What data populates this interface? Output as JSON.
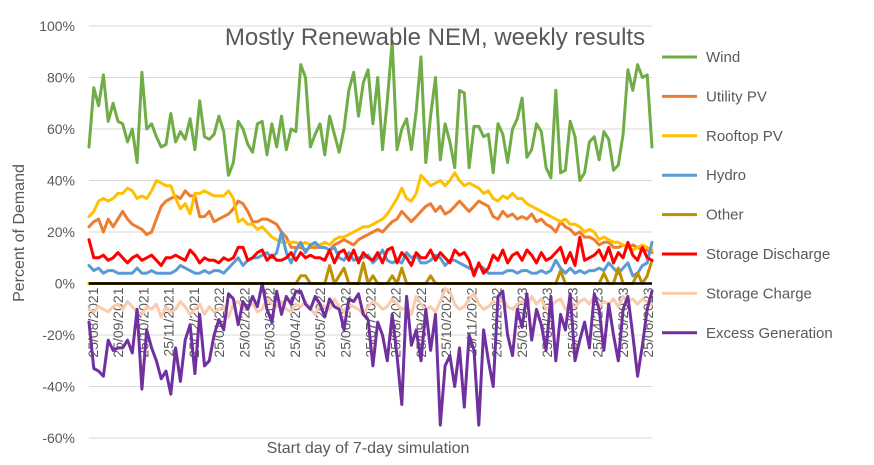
{
  "chart_data": {
    "type": "line",
    "title": "Mostly Renewable NEM, weekly results",
    "xlabel": "Start day of 7-day simulation",
    "ylabel": "Percent of Demand",
    "ylim": [
      -60,
      100
    ],
    "ytick_labels": [
      "100%",
      "80%",
      "60%",
      "40%",
      "20%",
      "0%",
      "-20%",
      "-40%",
      "-60%"
    ],
    "ytick_values": [
      100,
      80,
      60,
      40,
      20,
      0,
      -20,
      -40,
      -60
    ],
    "grid": true,
    "legend_position": "right",
    "x_tick_labels": [
      "25/08/2021",
      "25/09/2021",
      "25/10/2021",
      "25/11/2021",
      "25/12/2021",
      "25/01/2022",
      "25/02/2022",
      "25/03/2022",
      "25/04/2022",
      "25/05/2022",
      "25/06/2022",
      "25/07/2022",
      "25/08/2022",
      "25/09/2022",
      "25/10/2022",
      "25/11/2022",
      "25/12/2022",
      "25/01/2023",
      "25/02/2023",
      "25/03/2023",
      "25/04/2023",
      "25/05/2023",
      "25/06/2023"
    ],
    "series": [
      {
        "name": "Wind",
        "color": "#70AD47",
        "values": [
          53,
          76,
          69,
          81,
          63,
          70,
          63,
          62,
          55,
          60,
          47,
          82,
          60,
          62,
          57,
          53,
          54,
          66,
          55,
          59,
          56,
          64,
          52,
          71,
          57,
          56,
          58,
          65,
          59,
          42,
          47,
          63,
          60,
          54,
          51,
          62,
          63,
          50,
          62,
          53,
          65,
          52,
          60,
          59,
          85,
          80,
          53,
          58,
          62,
          50,
          65,
          58,
          51,
          60,
          75,
          82,
          65,
          78,
          83,
          62,
          80,
          52,
          71,
          94,
          52,
          60,
          64,
          52,
          67,
          88,
          47,
          65,
          80,
          48,
          62,
          55,
          45,
          75,
          74,
          45,
          61,
          61,
          57,
          58,
          43,
          62,
          58,
          47,
          60,
          64,
          72,
          49,
          52,
          62,
          59,
          45,
          41,
          75,
          43,
          44,
          63,
          57,
          40,
          43,
          55,
          57,
          48,
          59,
          56,
          44,
          46,
          58,
          83,
          75,
          85,
          80,
          81,
          53
        ]
      },
      {
        "name": "Utility PV",
        "color": "#ED7D31",
        "values": [
          22,
          24,
          25,
          20,
          25,
          22,
          25,
          28,
          25,
          23,
          22,
          21,
          19,
          20,
          25,
          30,
          32,
          33,
          34,
          33,
          36,
          34,
          34,
          26,
          26,
          28,
          24,
          25,
          26,
          27,
          29,
          32,
          31,
          28,
          24,
          24,
          25,
          25,
          24,
          23,
          20,
          18,
          14,
          14,
          14,
          13,
          14,
          14,
          14,
          14,
          13,
          15,
          16,
          17,
          16,
          15,
          17,
          18,
          19,
          20,
          21,
          20,
          22,
          24,
          25,
          28,
          26,
          24,
          26,
          28,
          30,
          31,
          28,
          30,
          27,
          28,
          30,
          32,
          30,
          28,
          30,
          32,
          31,
          30,
          26,
          25,
          28,
          26,
          27,
          25,
          26,
          25,
          27,
          24,
          25,
          23,
          22,
          20,
          24,
          22,
          21,
          19,
          20,
          18,
          18,
          17,
          15,
          16,
          16,
          14,
          14,
          15,
          14,
          15,
          14,
          13,
          13,
          12
        ]
      },
      {
        "name": "Rooftop PV",
        "color": "#FFC000",
        "values": [
          26,
          28,
          32,
          33,
          32,
          33,
          35,
          35,
          37,
          36,
          33,
          34,
          33,
          36,
          40,
          39,
          38,
          38,
          33,
          29,
          31,
          27,
          35,
          35,
          36,
          35,
          34,
          34,
          34,
          36,
          33,
          24,
          25,
          23,
          23,
          21,
          22,
          20,
          18,
          17,
          16,
          16,
          16,
          16,
          15,
          16,
          15,
          15,
          15,
          16,
          15,
          17,
          18,
          18,
          19,
          20,
          21,
          22,
          22,
          23,
          24,
          25,
          27,
          30,
          33,
          37,
          33,
          32,
          35,
          42,
          40,
          38,
          39,
          40,
          38,
          40,
          43,
          40,
          38,
          39,
          38,
          37,
          35,
          36,
          33,
          32,
          34,
          33,
          35,
          33,
          33,
          31,
          30,
          29,
          28,
          27,
          26,
          25,
          24,
          25,
          23,
          23,
          22,
          20,
          21,
          20,
          17,
          18,
          17,
          16,
          16,
          15,
          14,
          13,
          14,
          15,
          14,
          13
        ]
      },
      {
        "name": "Hydro",
        "color": "#5B9BD5",
        "values": [
          7,
          5,
          6,
          4,
          5,
          5,
          4,
          4,
          4,
          4,
          6,
          4,
          4,
          5,
          4,
          4,
          4,
          4,
          5,
          7,
          6,
          5,
          4,
          4,
          5,
          4,
          5,
          5,
          4,
          6,
          8,
          10,
          7,
          9,
          10,
          10,
          11,
          12,
          10,
          12,
          20,
          12,
          8,
          13,
          16,
          12,
          15,
          16,
          14,
          14,
          13,
          14,
          10,
          9,
          12,
          9,
          10,
          10,
          11,
          8,
          10,
          13,
          9,
          8,
          9,
          8,
          12,
          10,
          11,
          8,
          8,
          9,
          11,
          10,
          7,
          9,
          9,
          8,
          7,
          6,
          5,
          7,
          6,
          4,
          4,
          4,
          4,
          5,
          5,
          4,
          5,
          5,
          4,
          4,
          5,
          4,
          5,
          9,
          6,
          4,
          6,
          4,
          5,
          4,
          5,
          5,
          6,
          5,
          8,
          6,
          4,
          6,
          8,
          3,
          4,
          7,
          8,
          16
        ]
      },
      {
        "name": "Other",
        "color": "#BF9000",
        "values": [
          0,
          0,
          0,
          0,
          0,
          0,
          0,
          0,
          0,
          0,
          0,
          0,
          0,
          0,
          0,
          0,
          0,
          0,
          0,
          0,
          0,
          0,
          0,
          0,
          0,
          0,
          0,
          0,
          0,
          0,
          0,
          0,
          0,
          0,
          0,
          0,
          0,
          0,
          0,
          0,
          0,
          0,
          0,
          0,
          3,
          3,
          0,
          0,
          0,
          0,
          7,
          0,
          3,
          6,
          0,
          0,
          0,
          8,
          0,
          3,
          0,
          0,
          0,
          3,
          0,
          6,
          0,
          0,
          0,
          0,
          0,
          3,
          0,
          0,
          0,
          0,
          0,
          0,
          0,
          0,
          0,
          0,
          0,
          0,
          0,
          0,
          0,
          0,
          0,
          0,
          0,
          0,
          0,
          0,
          0,
          0,
          0,
          0,
          5,
          0,
          0,
          0,
          0,
          0,
          0,
          0,
          0,
          4,
          0,
          0,
          6,
          0,
          0,
          0,
          4,
          0,
          3,
          9
        ]
      },
      {
        "name": "Storage Discharge",
        "color": "#FF0000",
        "values": [
          17,
          10,
          10,
          11,
          9,
          10,
          12,
          10,
          8,
          10,
          11,
          9,
          10,
          11,
          9,
          7,
          10,
          10,
          11,
          10,
          9,
          13,
          11,
          8,
          10,
          9,
          9,
          8,
          10,
          9,
          10,
          14,
          14,
          9,
          10,
          12,
          13,
          9,
          11,
          9,
          9,
          10,
          12,
          9,
          12,
          10,
          11,
          10,
          10,
          9,
          13,
          8,
          12,
          13,
          9,
          13,
          8,
          12,
          10,
          9,
          12,
          8,
          13,
          14,
          8,
          12,
          10,
          7,
          12,
          10,
          10,
          13,
          9,
          12,
          10,
          8,
          13,
          11,
          12,
          9,
          3,
          8,
          4,
          6,
          11,
          9,
          13,
          8,
          11,
          12,
          9,
          13,
          11,
          8,
          12,
          9,
          10,
          12,
          14,
          8,
          12,
          7,
          18,
          9,
          10,
          11,
          13,
          9,
          14,
          8,
          12,
          10,
          16,
          11,
          9,
          14,
          10,
          9
        ]
      },
      {
        "name": "Storage Charge",
        "color": "#F8CBAD",
        "values": [
          -10,
          -11,
          -9,
          -10,
          -11,
          -9,
          -8,
          -10,
          -7,
          -9,
          -11,
          -12,
          -9,
          -10,
          -8,
          -13,
          -9,
          -11,
          -10,
          -7,
          -9,
          -12,
          -10,
          -8,
          -12,
          -9,
          -11,
          -10,
          -9,
          -13,
          -8,
          -7,
          -10,
          -9,
          -8,
          -11,
          -10,
          -6,
          -8,
          -9,
          -7,
          -10,
          -11,
          -8,
          -9,
          -7,
          -10,
          -12,
          -8,
          -9,
          -10,
          -6,
          -9,
          -11,
          -8,
          -9,
          -10,
          -12,
          -9,
          -7,
          -8,
          -10,
          -9,
          -6,
          -8,
          -10,
          -9,
          -12,
          -5,
          -8,
          -10,
          -9,
          -11,
          -7,
          -2,
          -3,
          -8,
          -10,
          -9,
          -6,
          -4,
          -8,
          -10,
          -9,
          -7,
          -8,
          -6,
          -9,
          -10,
          -8,
          -7,
          -9,
          -5,
          -8,
          -6,
          -10,
          -9,
          -7,
          -6,
          -10,
          -8,
          -9,
          -7,
          -6,
          -8,
          -5,
          -9,
          -7,
          -8,
          -6,
          -9,
          -5,
          -7,
          -6,
          -8,
          -6,
          -7,
          -8
        ]
      },
      {
        "name": "Excess Generation",
        "color": "#7030A0",
        "values": [
          -15,
          -33,
          -34,
          -36,
          -22,
          -26,
          -25,
          -25,
          -22,
          -27,
          -10,
          -41,
          -18,
          -25,
          -30,
          -37,
          -34,
          -43,
          -25,
          -38,
          -22,
          -16,
          -35,
          -12,
          -32,
          -30,
          -20,
          -14,
          -18,
          -4,
          -6,
          -16,
          -7,
          -10,
          -5,
          -9,
          0,
          -10,
          -15,
          -3,
          -12,
          -5,
          -8,
          -3,
          -3,
          -8,
          -10,
          -5,
          -8,
          -13,
          -6,
          -9,
          -10,
          -18,
          -6,
          -7,
          -4,
          -12,
          -14,
          -32,
          -15,
          -20,
          -30,
          -12,
          -28,
          -47,
          -5,
          -24,
          -18,
          -30,
          -10,
          -26,
          -12,
          -55,
          -32,
          -28,
          -40,
          -25,
          -48,
          -20,
          -26,
          -55,
          -18,
          -30,
          -40,
          -5,
          -3,
          -20,
          -28,
          -10,
          -17,
          -4,
          -22,
          -10,
          -16,
          -26,
          -5,
          -30,
          -12,
          -18,
          -4,
          -30,
          -22,
          -15,
          -25,
          -4,
          -10,
          -26,
          -8,
          -20,
          -30,
          -10,
          -5,
          -20,
          -36,
          -24,
          -10,
          -3
        ]
      }
    ]
  }
}
